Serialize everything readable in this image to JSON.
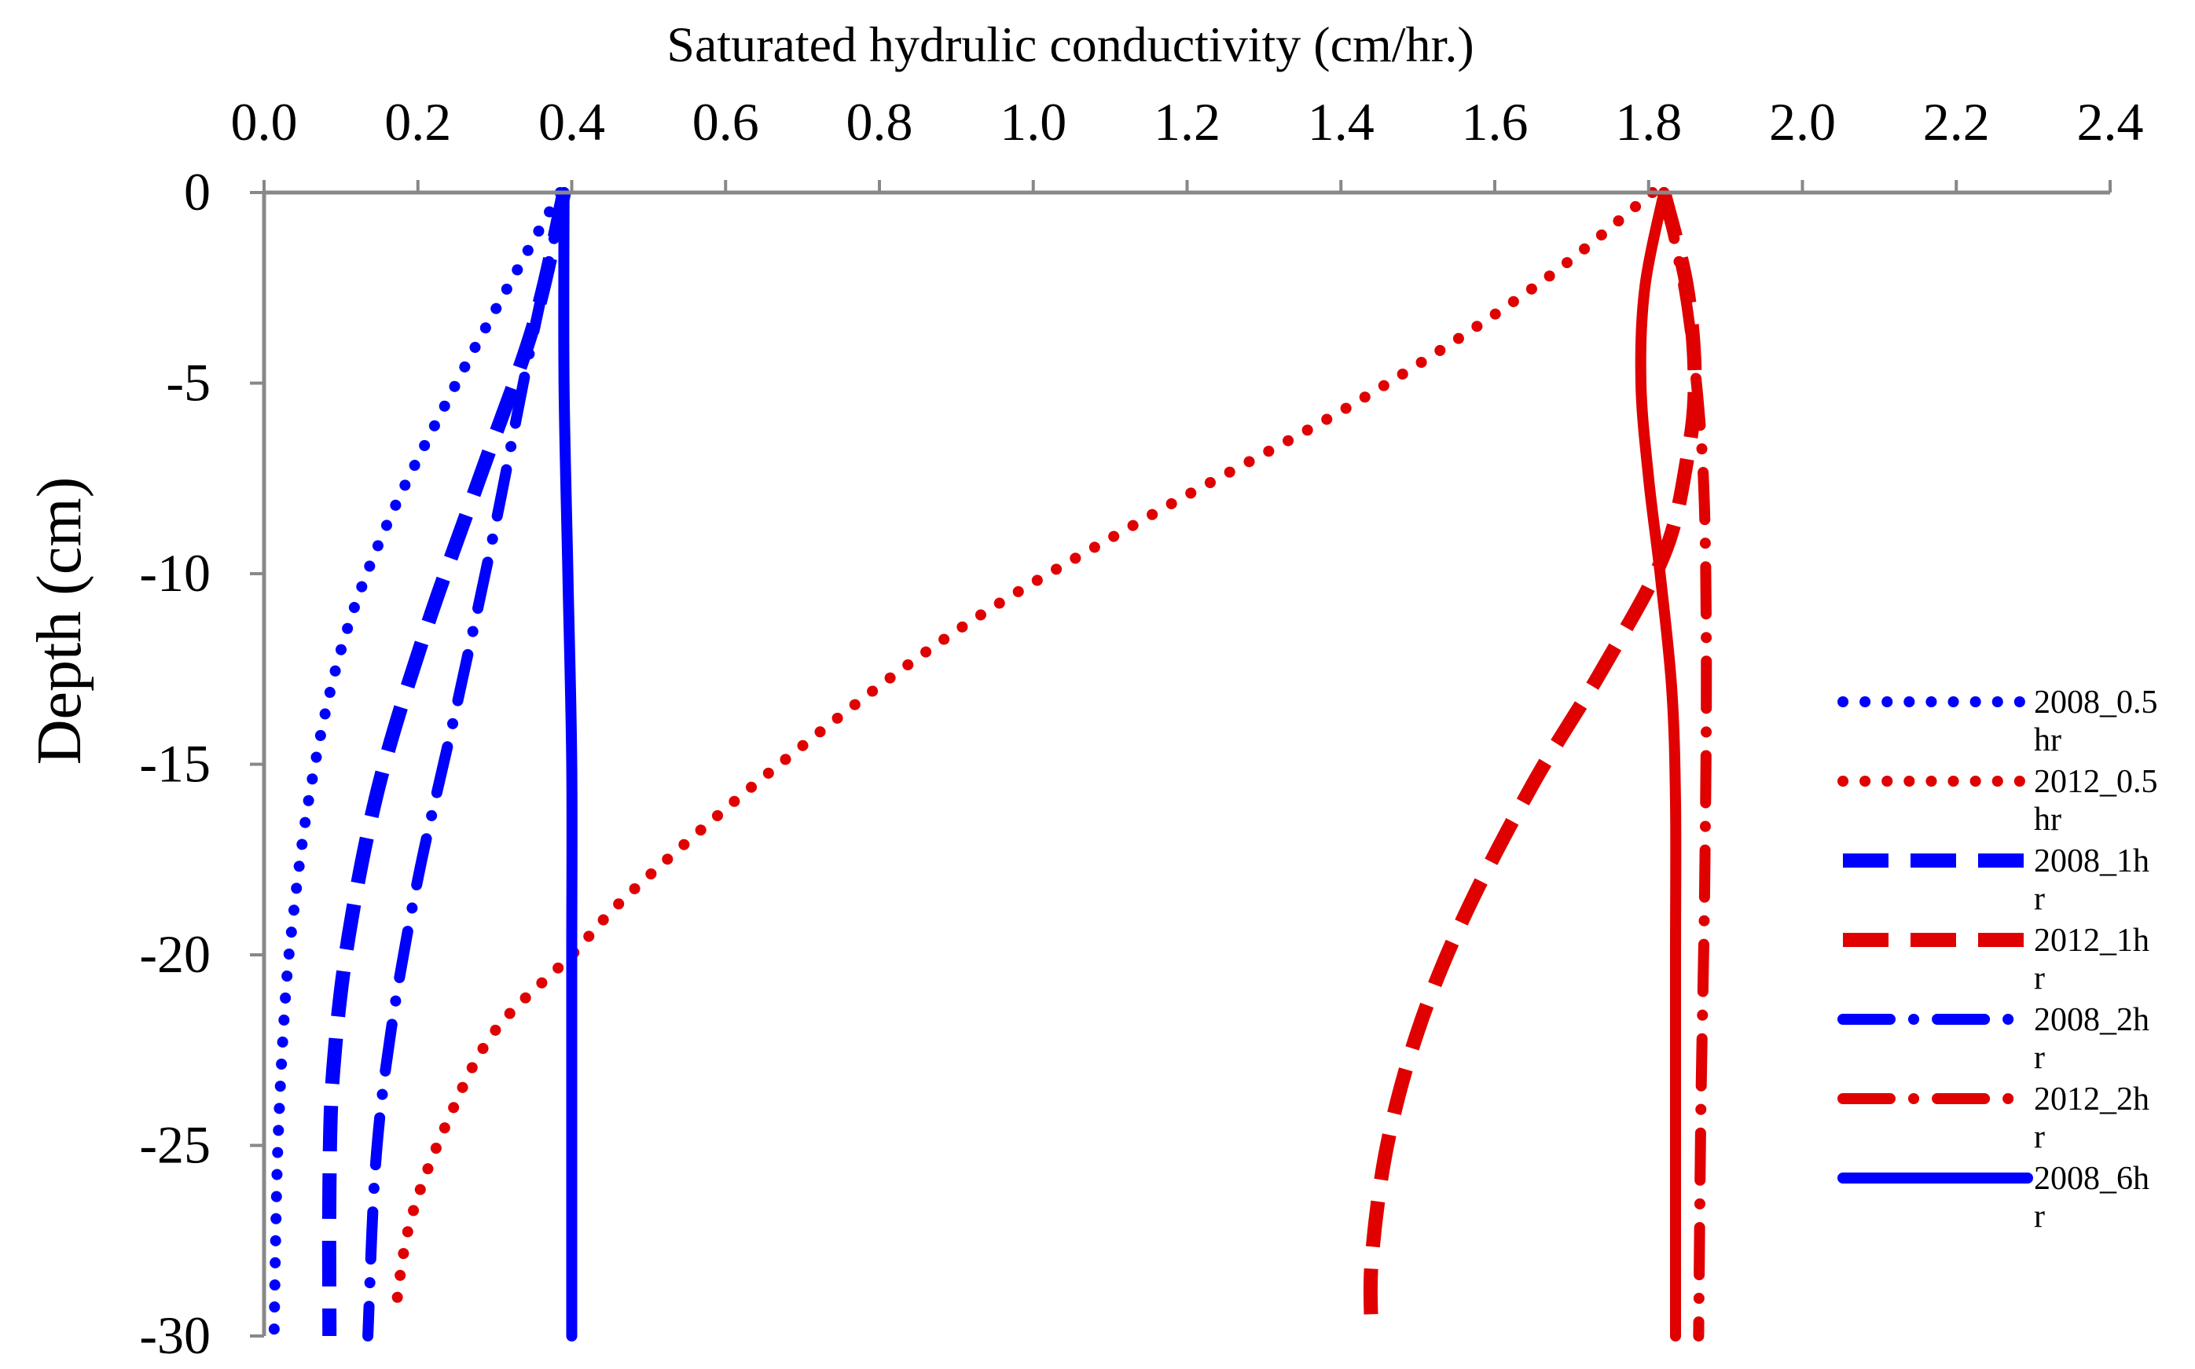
{
  "chart_data": {
    "type": "line",
    "title": "",
    "xlabel": "Saturated hydrulic conductivity (cm/hr.)",
    "ylabel": "Depth (cm)",
    "xlim": [
      0.0,
      2.4
    ],
    "ylim": [
      -30,
      0
    ],
    "x_axis_position": "top",
    "x_ticks": [
      "0.0",
      "0.2",
      "0.4",
      "0.6",
      "0.8",
      "1.0",
      "1.2",
      "1.4",
      "1.6",
      "1.8",
      "2.0",
      "2.2",
      "2.4"
    ],
    "y_ticks": [
      "0",
      "-5",
      "-10",
      "-15",
      "-20",
      "-25",
      "-30"
    ],
    "grid": false,
    "legend_position": "right",
    "series": [
      {
        "name": "2008_0.5 hr",
        "color": "#0000FF",
        "style": "dotted",
        "points": [
          [
            0.385,
            0
          ],
          [
            0.33,
            -2
          ],
          [
            0.25,
            -5
          ],
          [
            0.16,
            -8.7
          ],
          [
            0.1,
            -12
          ],
          [
            0.06,
            -15.7
          ],
          [
            0.035,
            -19.5
          ],
          [
            0.025,
            -22
          ],
          [
            0.018,
            -25
          ],
          [
            0.015,
            -27.5
          ],
          [
            0.013,
            -30
          ]
        ]
      },
      {
        "name": "2012_0.5 hr",
        "color": "#E00000",
        "style": "dotted",
        "points": [
          [
            1.805,
            0
          ],
          [
            1.65,
            -2.5
          ],
          [
            1.42,
            -5.5
          ],
          [
            1.15,
            -8.5
          ],
          [
            0.9,
            -11.5
          ],
          [
            0.67,
            -15
          ],
          [
            0.48,
            -18.3
          ],
          [
            0.4,
            -20
          ],
          [
            0.3,
            -22
          ],
          [
            0.24,
            -24.3
          ],
          [
            0.19,
            -27
          ],
          [
            0.17,
            -29.5
          ]
        ]
      },
      {
        "name": "2008_1hr",
        "color": "#0000FF",
        "style": "dashed",
        "points": [
          [
            0.39,
            0
          ],
          [
            0.35,
            -3.5
          ],
          [
            0.28,
            -7.5
          ],
          [
            0.21,
            -11.5
          ],
          [
            0.15,
            -15.5
          ],
          [
            0.11,
            -19.5
          ],
          [
            0.09,
            -23
          ],
          [
            0.085,
            -26
          ],
          [
            0.085,
            -30
          ]
        ]
      },
      {
        "name": "2012_1hr",
        "color": "#E00000",
        "style": "dashed",
        "points": [
          [
            1.82,
            0
          ],
          [
            1.85,
            -2.5
          ],
          [
            1.86,
            -5
          ],
          [
            1.85,
            -7
          ],
          [
            1.82,
            -9.5
          ],
          [
            1.74,
            -12.5
          ],
          [
            1.65,
            -15.5
          ],
          [
            1.56,
            -19
          ],
          [
            1.5,
            -22
          ],
          [
            1.46,
            -25
          ],
          [
            1.44,
            -28
          ],
          [
            1.44,
            -30
          ]
        ]
      },
      {
        "name": "2008_2hr",
        "color": "#0000FF",
        "style": "dashdot",
        "points": [
          [
            0.39,
            0
          ],
          [
            0.345,
            -4.2
          ],
          [
            0.3,
            -8.8
          ],
          [
            0.25,
            -13.5
          ],
          [
            0.2,
            -18
          ],
          [
            0.165,
            -22
          ],
          [
            0.145,
            -25.5
          ],
          [
            0.135,
            -30
          ]
        ]
      },
      {
        "name": "2012_2hr",
        "color": "#E00000",
        "style": "dashdot",
        "points": [
          [
            1.82,
            0
          ],
          [
            1.85,
            -3
          ],
          [
            1.87,
            -7
          ],
          [
            1.875,
            -12
          ],
          [
            1.873,
            -18
          ],
          [
            1.868,
            -24
          ],
          [
            1.865,
            -30
          ]
        ]
      },
      {
        "name": "2008_6hr",
        "color": "#0000FF",
        "style": "solid",
        "points": [
          [
            0.39,
            0
          ],
          [
            0.39,
            -5
          ],
          [
            0.395,
            -10
          ],
          [
            0.4,
            -15
          ],
          [
            0.4,
            -20
          ],
          [
            0.4,
            -25
          ],
          [
            0.4,
            -30
          ]
        ]
      },
      {
        "name": "",
        "color": "#E00000",
        "style": "solid",
        "points": [
          [
            1.82,
            0
          ],
          [
            1.795,
            -2.5
          ],
          [
            1.79,
            -5
          ],
          [
            1.8,
            -7.5
          ],
          [
            1.815,
            -10
          ],
          [
            1.83,
            -13
          ],
          [
            1.835,
            -16
          ],
          [
            1.835,
            -20
          ],
          [
            1.835,
            -25
          ],
          [
            1.835,
            -30
          ]
        ]
      }
    ]
  }
}
